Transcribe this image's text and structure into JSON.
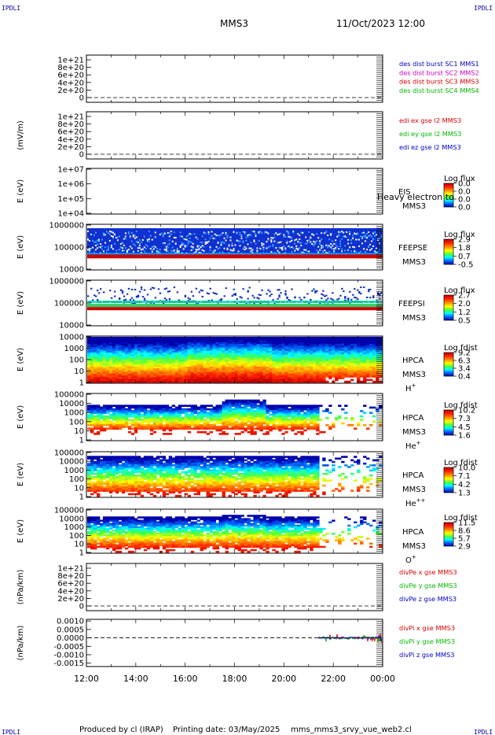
{
  "header": {
    "corner_left_top": "IPDLI",
    "corner_right_top": "IPDLI",
    "corner_left_bottom": "IPDLI",
    "corner_right_bottom": "IPDLI",
    "spacecraft": "MMS3",
    "date": "11/Oct/2023 12:00"
  },
  "footer": {
    "produced_by": "Produced by  cl (IRAP)",
    "printing_date": "Printing date: 03/May/2025",
    "script": "mms_mms3_srvy_vue_web2.cl"
  },
  "colors": {
    "mms1": "#0000cc",
    "mms2": "#cc00cc",
    "mms3": "#dd0000",
    "mms4": "#00bb00",
    "x": "#dd0000",
    "y": "#00bb00",
    "z": "#0000cc"
  },
  "chart_data": [
    {
      "type": "line",
      "panel": "des-dist",
      "ylabel": "",
      "yticks": [
        "1e+21",
        "8e+20",
        "6e+20",
        "4e+20",
        "2e+20",
        "0"
      ],
      "series": [
        {
          "name": "des dist burst SC1 MMS1",
          "values": []
        },
        {
          "name": "des dist burst SC2 MMS2",
          "values": []
        },
        {
          "name": "des dist burst SC3 MMS3",
          "values": []
        },
        {
          "name": "des dist burst SC4 MMS4",
          "values": []
        }
      ]
    },
    {
      "type": "line",
      "panel": "edi-e",
      "ylabel": "(mV/m)",
      "yticks": [
        "1e+21",
        "8e+20",
        "6e+20",
        "4e+20",
        "2e+20",
        "0"
      ],
      "series": [
        {
          "name": "edi ex gse l2 MMS3",
          "values": []
        },
        {
          "name": "edi ey gse l2 MMS3",
          "values": []
        },
        {
          "name": "edi ez gse l2 MMS3",
          "values": []
        }
      ]
    },
    {
      "type": "heatmap",
      "panel": "eis",
      "ylabel": "E (eV)",
      "yticks": [
        "1e+07",
        "1e+06",
        "1e+05",
        "1e+04"
      ],
      "instrument": "EIS",
      "spacecraft": "MMS3",
      "overlay_text": "Heavy electron to",
      "colorbar_title": "Log flux",
      "colorbar_ticks": [
        "0.0",
        "0.0",
        "0.0",
        "0.0"
      ]
    },
    {
      "type": "heatmap",
      "panel": "feeps-e",
      "ylabel": "E (eV)",
      "yticks": [
        "1000000",
        "100000",
        "10000"
      ],
      "instrument": "FEEPSE",
      "spacecraft": "MMS3",
      "colorbar_title": "Log flux",
      "colorbar_ticks": [
        "2.9",
        "1.8",
        "0.7",
        "-0.5"
      ]
    },
    {
      "type": "heatmap",
      "panel": "feeps-i",
      "ylabel": "E (eV)",
      "yticks": [
        "1000000",
        "100000",
        "10000"
      ],
      "instrument": "FEEPSI",
      "spacecraft": "MMS3",
      "colorbar_title": "Log flux",
      "colorbar_ticks": [
        "2.7",
        "2.0",
        "1.2",
        "0.5"
      ]
    },
    {
      "type": "heatmap",
      "panel": "hpca-h",
      "ylabel": "E (eV)",
      "yticks": [
        "10000",
        "1000",
        "100",
        "10",
        "1"
      ],
      "instrument": "HPCA",
      "spacecraft": "MMS3",
      "species": "H",
      "species_sup": "+",
      "colorbar_title": "Log fdist",
      "colorbar_ticks": [
        "9.2",
        "6.3",
        "3.4",
        "0.4"
      ]
    },
    {
      "type": "heatmap",
      "panel": "hpca-he",
      "ylabel": "E (eV)",
      "yticks": [
        "100000",
        "10000",
        "1000",
        "100",
        "10",
        "1"
      ],
      "instrument": "HPCA",
      "spacecraft": "MMS3",
      "species": "He",
      "species_sup": "+",
      "colorbar_title": "Log fdist",
      "colorbar_ticks": [
        "10.2",
        "7.3",
        "4.5",
        "1.6"
      ]
    },
    {
      "type": "heatmap",
      "panel": "hpca-hepp",
      "ylabel": "E (eV)",
      "yticks": [
        "100000",
        "10000",
        "1000",
        "100",
        "10",
        "1"
      ],
      "instrument": "HPCA",
      "spacecraft": "MMS3",
      "species": "He",
      "species_sup": "++",
      "colorbar_title": "Log fdist",
      "colorbar_ticks": [
        "10.0",
        "7.1",
        "4.2",
        "1.3"
      ]
    },
    {
      "type": "heatmap",
      "panel": "hpca-o",
      "ylabel": "E (eV)",
      "yticks": [
        "100000",
        "10000",
        "1000",
        "100",
        "10",
        "1"
      ],
      "instrument": "HPCA",
      "spacecraft": "MMS3",
      "species": "O",
      "species_sup": "+",
      "colorbar_title": "Log fdist",
      "colorbar_ticks": [
        "11.5",
        "8.6",
        "5.7",
        "2.9"
      ]
    },
    {
      "type": "line",
      "panel": "divpe",
      "ylabel": "(nPa/km)",
      "yticks": [
        "1e+21",
        "8e+20",
        "6e+20",
        "4e+20",
        "2e+20",
        "0"
      ],
      "series": [
        {
          "name": "divPe x gse MMS3",
          "values": []
        },
        {
          "name": "divPe y gse MMS3",
          "values": []
        },
        {
          "name": "divPe z gse MMS3",
          "values": []
        }
      ]
    },
    {
      "type": "line",
      "panel": "divpi",
      "ylabel": "(nPa/km)",
      "yticks": [
        "0.0010",
        "0.0005",
        "0.0000",
        "-0.0005",
        "-0.0010",
        "-0.0015"
      ],
      "ylim": [
        -0.0017,
        0.0011
      ],
      "series": [
        {
          "name": "divPi x gse MMS3",
          "values": []
        },
        {
          "name": "divPi y gse MMS3",
          "values": []
        },
        {
          "name": "divPi z gse MMS3",
          "values": []
        }
      ]
    }
  ],
  "xaxis": {
    "ticks": [
      "12:00",
      "14:00",
      "16:00",
      "18:00",
      "20:00",
      "22:00",
      "00:00"
    ]
  }
}
